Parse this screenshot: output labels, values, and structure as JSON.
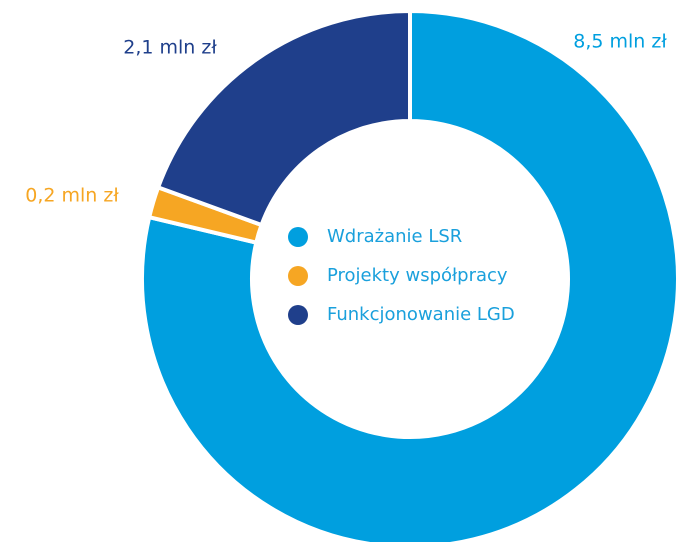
{
  "chart_data": {
    "type": "donut",
    "categories": [
      "Wdrażanie LSR",
      "Projekty współpracy",
      "Funkcjonowanie LGD"
    ],
    "values": [
      8.5,
      0.2,
      2.1
    ],
    "value_labels": [
      "8,5 mln zł",
      "0,2 mln zł",
      "2,1 mln zł"
    ],
    "colors": [
      "#009fdf",
      "#f6a623",
      "#1f3f8b"
    ],
    "legend": "center"
  }
}
